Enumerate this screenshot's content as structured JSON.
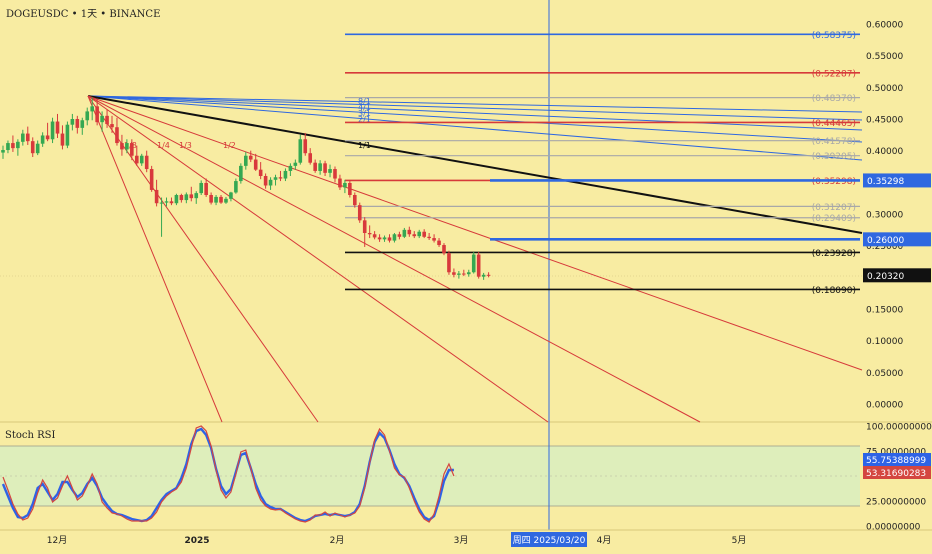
{
  "header": {
    "symbol": "DOGEUSDC",
    "sep1": "•",
    "interval": "1天",
    "sep2": "•",
    "exchange": "BINANCE"
  },
  "rsi_title": "Stoch RSI",
  "colors": {
    "bg": "#f8eca2",
    "up": "#35a852",
    "down": "#d8393c",
    "blue": "#2f68e0",
    "red": "#d63a3a",
    "black": "#111111",
    "gray": "#a8a8a8",
    "rsi_blue": "#2e63e6",
    "rsi_red": "#d44640"
  },
  "chart_data": [
    {
      "type": "candlestick",
      "title": "",
      "price_axis": {
        "ticks": [
          "0.60000",
          "0.55000",
          "0.50000",
          "0.45000",
          "0.40000",
          "0.35000",
          "0.30000",
          "0.25000",
          "0.20000",
          "0.15000",
          "0.10000",
          "0.05000",
          "0.00000"
        ],
        "range": [
          -0.02,
          0.62
        ]
      },
      "time_axis": {
        "labels": [
          "12月",
          "2025",
          "2月",
          "3月",
          "4月",
          "5月"
        ],
        "crosshair_label": "周四 2025/03/20"
      },
      "current_price": "0.20320",
      "price_labels": [
        {
          "text": "0.35298",
          "color": "#2f68e0",
          "value": 0.35298
        },
        {
          "text": "0.26000",
          "color": "#2f68e0",
          "value": 0.26
        },
        {
          "text": "0.20320",
          "color": "#111111",
          "value": 0.2032
        }
      ],
      "horizontal_levels": [
        {
          "label": "(0.58375)",
          "value": 0.58375,
          "color": "#2f68e0",
          "width": 1.6,
          "label_color": "#2f68e0",
          "start": "short"
        },
        {
          "label": "(0.52287)",
          "value": 0.52287,
          "color": "#d63a3a",
          "width": 1.6,
          "label_color": "#d63a3a",
          "start": "short"
        },
        {
          "label": "(0.48370)",
          "value": 0.4837,
          "color": "#a8a8a8",
          "width": 1.2,
          "label_color": "#a8a8a8",
          "start": "short"
        },
        {
          "label": "(0.44465)",
          "value": 0.44465,
          "color": "#d63a3a",
          "width": 1.6,
          "label_color": "#d63a3a",
          "start": "short"
        },
        {
          "label": "(0.41578)",
          "value": 0.41578,
          "color": "#a8a8a8",
          "width": 1.2,
          "label_color": "#a8a8a8",
          "start": "short"
        },
        {
          "label": "(0.39205)",
          "value": 0.39205,
          "color": "#a8a8a8",
          "width": 1.2,
          "label_color": "#a8a8a8",
          "start": "short"
        },
        {
          "label": "(0.35298)",
          "value": 0.35298,
          "color": "#d63a3a",
          "width": 1.6,
          "label_color": "#d63a3a",
          "start": "short"
        },
        {
          "label": "(0.31207)",
          "value": 0.31207,
          "color": "#a8a8a8",
          "width": 1.2,
          "label_color": "#a8a8a8",
          "start": "short"
        },
        {
          "label": "(0.29409)",
          "value": 0.29409,
          "color": "#a8a8a8",
          "width": 1.2,
          "label_color": "#a8a8a8",
          "start": "short"
        },
        {
          "label": "(0.23928)",
          "value": 0.23928,
          "color": "#111111",
          "width": 1.6,
          "label_color": "#111111",
          "start": "short"
        },
        {
          "label": "(0.18090)",
          "value": 0.1809,
          "color": "#111111",
          "width": 1.6,
          "label_color": "#111111",
          "start": "short"
        },
        {
          "label": "",
          "value": 0.35298,
          "color": "#2f68e0",
          "width": 2.6,
          "label_color": "#2f68e0",
          "start": "mid"
        },
        {
          "label": "",
          "value": 0.26,
          "color": "#2f68e0",
          "width": 2.6,
          "label_color": "#2f68e0",
          "start": "mid"
        }
      ],
      "fan_labels": [
        "1/8",
        "1/4",
        "1/3",
        "1/2",
        "1/1",
        "2/1",
        "3/1",
        "4/1",
        "8/1"
      ],
      "candles": [
        [
          0.397,
          0.408,
          0.387,
          0.401
        ],
        [
          0.401,
          0.416,
          0.396,
          0.412
        ],
        [
          0.412,
          0.424,
          0.398,
          0.404
        ],
        [
          0.404,
          0.418,
          0.392,
          0.414
        ],
        [
          0.414,
          0.433,
          0.408,
          0.427
        ],
        [
          0.427,
          0.438,
          0.409,
          0.415
        ],
        [
          0.415,
          0.421,
          0.39,
          0.396
        ],
        [
          0.396,
          0.416,
          0.393,
          0.411
        ],
        [
          0.411,
          0.429,
          0.406,
          0.424
        ],
        [
          0.424,
          0.444,
          0.415,
          0.418
        ],
        [
          0.418,
          0.452,
          0.412,
          0.446
        ],
        [
          0.446,
          0.458,
          0.42,
          0.427
        ],
        [
          0.427,
          0.44,
          0.402,
          0.408
        ],
        [
          0.408,
          0.446,
          0.404,
          0.441
        ],
        [
          0.441,
          0.458,
          0.432,
          0.45
        ],
        [
          0.45,
          0.455,
          0.427,
          0.436
        ],
        [
          0.436,
          0.452,
          0.425,
          0.448
        ],
        [
          0.448,
          0.468,
          0.44,
          0.462
        ],
        [
          0.462,
          0.484,
          0.448,
          0.47
        ],
        [
          0.47,
          0.482,
          0.44,
          0.445
        ],
        [
          0.445,
          0.462,
          0.43,
          0.455
        ],
        [
          0.455,
          0.465,
          0.436,
          0.442
        ],
        [
          0.442,
          0.455,
          0.428,
          0.437
        ],
        [
          0.437,
          0.452,
          0.408,
          0.412
        ],
        [
          0.412,
          0.425,
          0.392,
          0.402
        ],
        [
          0.402,
          0.418,
          0.396,
          0.412
        ],
        [
          0.412,
          0.418,
          0.385,
          0.392
        ],
        [
          0.392,
          0.408,
          0.376,
          0.38
        ],
        [
          0.38,
          0.395,
          0.376,
          0.392
        ],
        [
          0.392,
          0.4,
          0.366,
          0.371
        ],
        [
          0.371,
          0.376,
          0.335,
          0.338
        ],
        [
          0.338,
          0.354,
          0.312,
          0.317
        ],
        [
          0.317,
          0.326,
          0.264,
          0.318
        ],
        [
          0.318,
          0.326,
          0.312,
          0.32
        ],
        [
          0.32,
          0.326,
          0.314,
          0.317
        ],
        [
          0.317,
          0.332,
          0.314,
          0.33
        ],
        [
          0.33,
          0.332,
          0.318,
          0.322
        ],
        [
          0.322,
          0.334,
          0.317,
          0.331
        ],
        [
          0.331,
          0.343,
          0.32,
          0.325
        ],
        [
          0.325,
          0.336,
          0.316,
          0.333
        ],
        [
          0.333,
          0.353,
          0.33,
          0.349
        ],
        [
          0.349,
          0.356,
          0.327,
          0.33
        ],
        [
          0.33,
          0.334,
          0.315,
          0.318
        ],
        [
          0.318,
          0.33,
          0.314,
          0.327
        ],
        [
          0.327,
          0.33,
          0.316,
          0.318
        ],
        [
          0.318,
          0.327,
          0.316,
          0.324
        ],
        [
          0.324,
          0.335,
          0.32,
          0.334
        ],
        [
          0.334,
          0.356,
          0.332,
          0.352
        ],
        [
          0.352,
          0.38,
          0.348,
          0.376
        ],
        [
          0.376,
          0.398,
          0.37,
          0.392
        ],
        [
          0.392,
          0.4,
          0.382,
          0.386
        ],
        [
          0.386,
          0.395,
          0.368,
          0.37
        ],
        [
          0.37,
          0.382,
          0.355,
          0.36
        ],
        [
          0.36,
          0.364,
          0.34,
          0.345
        ],
        [
          0.345,
          0.358,
          0.338,
          0.354
        ],
        [
          0.354,
          0.362,
          0.345,
          0.358
        ],
        [
          0.358,
          0.368,
          0.352,
          0.356
        ],
        [
          0.356,
          0.372,
          0.352,
          0.368
        ],
        [
          0.368,
          0.38,
          0.36,
          0.376
        ],
        [
          0.376,
          0.386,
          0.37,
          0.381
        ],
        [
          0.381,
          0.425,
          0.378,
          0.418
        ],
        [
          0.418,
          0.428,
          0.392,
          0.396
        ],
        [
          0.396,
          0.404,
          0.378,
          0.381
        ],
        [
          0.381,
          0.386,
          0.365,
          0.368
        ],
        [
          0.368,
          0.385,
          0.362,
          0.38
        ],
        [
          0.38,
          0.384,
          0.36,
          0.365
        ],
        [
          0.365,
          0.378,
          0.358,
          0.371
        ],
        [
          0.371,
          0.375,
          0.35,
          0.356
        ],
        [
          0.356,
          0.362,
          0.338,
          0.342
        ],
        [
          0.342,
          0.354,
          0.333,
          0.349
        ],
        [
          0.349,
          0.352,
          0.326,
          0.33
        ],
        [
          0.33,
          0.334,
          0.31,
          0.314
        ],
        [
          0.314,
          0.318,
          0.286,
          0.29
        ],
        [
          0.29,
          0.295,
          0.248,
          0.27
        ],
        [
          0.27,
          0.282,
          0.262,
          0.268
        ],
        [
          0.268,
          0.273,
          0.26,
          0.263
        ],
        [
          0.263,
          0.268,
          0.256,
          0.26
        ],
        [
          0.26,
          0.266,
          0.256,
          0.263
        ],
        [
          0.263,
          0.268,
          0.255,
          0.258
        ],
        [
          0.258,
          0.27,
          0.255,
          0.268
        ],
        [
          0.268,
          0.272,
          0.26,
          0.264
        ],
        [
          0.264,
          0.278,
          0.262,
          0.275
        ],
        [
          0.275,
          0.28,
          0.264,
          0.268
        ],
        [
          0.268,
          0.273,
          0.262,
          0.265
        ],
        [
          0.265,
          0.275,
          0.262,
          0.272
        ],
        [
          0.272,
          0.276,
          0.262,
          0.264
        ],
        [
          0.264,
          0.27,
          0.259,
          0.262
        ],
        [
          0.262,
          0.268,
          0.255,
          0.258
        ],
        [
          0.258,
          0.262,
          0.248,
          0.251
        ],
        [
          0.251,
          0.254,
          0.235,
          0.238
        ],
        [
          0.238,
          0.242,
          0.204,
          0.208
        ],
        [
          0.208,
          0.214,
          0.2,
          0.204
        ],
        [
          0.204,
          0.21,
          0.198,
          0.206
        ],
        [
          0.206,
          0.212,
          0.202,
          0.205
        ],
        [
          0.205,
          0.212,
          0.201,
          0.208
        ],
        [
          0.208,
          0.24,
          0.206,
          0.236
        ],
        [
          0.236,
          0.24,
          0.198,
          0.201
        ],
        [
          0.201,
          0.207,
          0.196,
          0.204
        ],
        [
          0.204,
          0.208,
          0.2,
          0.2032
        ]
      ]
    },
    {
      "type": "line",
      "title": "Stoch RSI",
      "y_axis": {
        "ticks": [
          "100.00000000",
          "75.00000000",
          "25.00000000",
          "0.00000000"
        ],
        "range": [
          -3,
          103
        ]
      },
      "band": [
        20,
        80
      ],
      "series": [
        {
          "color": "#2e63e6",
          "last_label": "55.75388999",
          "values": [
            42,
            30,
            18,
            9,
            8,
            11,
            22,
            38,
            42,
            34,
            26,
            32,
            44,
            44,
            36,
            29,
            33,
            42,
            48,
            40,
            28,
            21,
            15,
            12,
            11,
            9,
            7,
            6,
            5,
            6,
            10,
            18,
            26,
            32,
            35,
            38,
            48,
            62,
            82,
            95,
            97,
            91,
            78,
            57,
            40,
            32,
            37,
            54,
            71,
            73,
            58,
            42,
            30,
            22,
            19,
            17,
            17,
            14,
            11,
            8,
            6,
            5,
            7,
            10,
            11,
            12,
            11,
            12,
            11,
            10,
            11,
            14,
            22,
            40,
            64,
            84,
            93,
            88,
            76,
            62,
            52,
            48,
            40,
            28,
            17,
            9,
            6,
            10,
            25,
            45,
            56,
            56
          ]
        },
        {
          "color": "#d44640",
          "last_label": "53.31690283",
          "values": [
            49,
            36,
            22,
            12,
            6,
            8,
            17,
            33,
            46,
            38,
            24,
            28,
            40,
            50,
            38,
            26,
            30,
            40,
            52,
            42,
            24,
            18,
            13,
            12,
            10,
            7,
            5,
            5,
            5,
            5,
            8,
            14,
            24,
            30,
            34,
            37,
            44,
            58,
            78,
            98,
            100,
            95,
            80,
            56,
            36,
            28,
            34,
            52,
            74,
            76,
            58,
            38,
            26,
            20,
            17,
            16,
            17,
            13,
            10,
            7,
            5,
            4,
            6,
            11,
            11,
            14,
            10,
            13,
            11,
            9,
            11,
            13,
            20,
            38,
            63,
            86,
            97,
            91,
            75,
            58,
            51,
            49,
            38,
            25,
            14,
            7,
            4,
            12,
            30,
            52,
            62,
            50
          ]
        }
      ]
    }
  ]
}
